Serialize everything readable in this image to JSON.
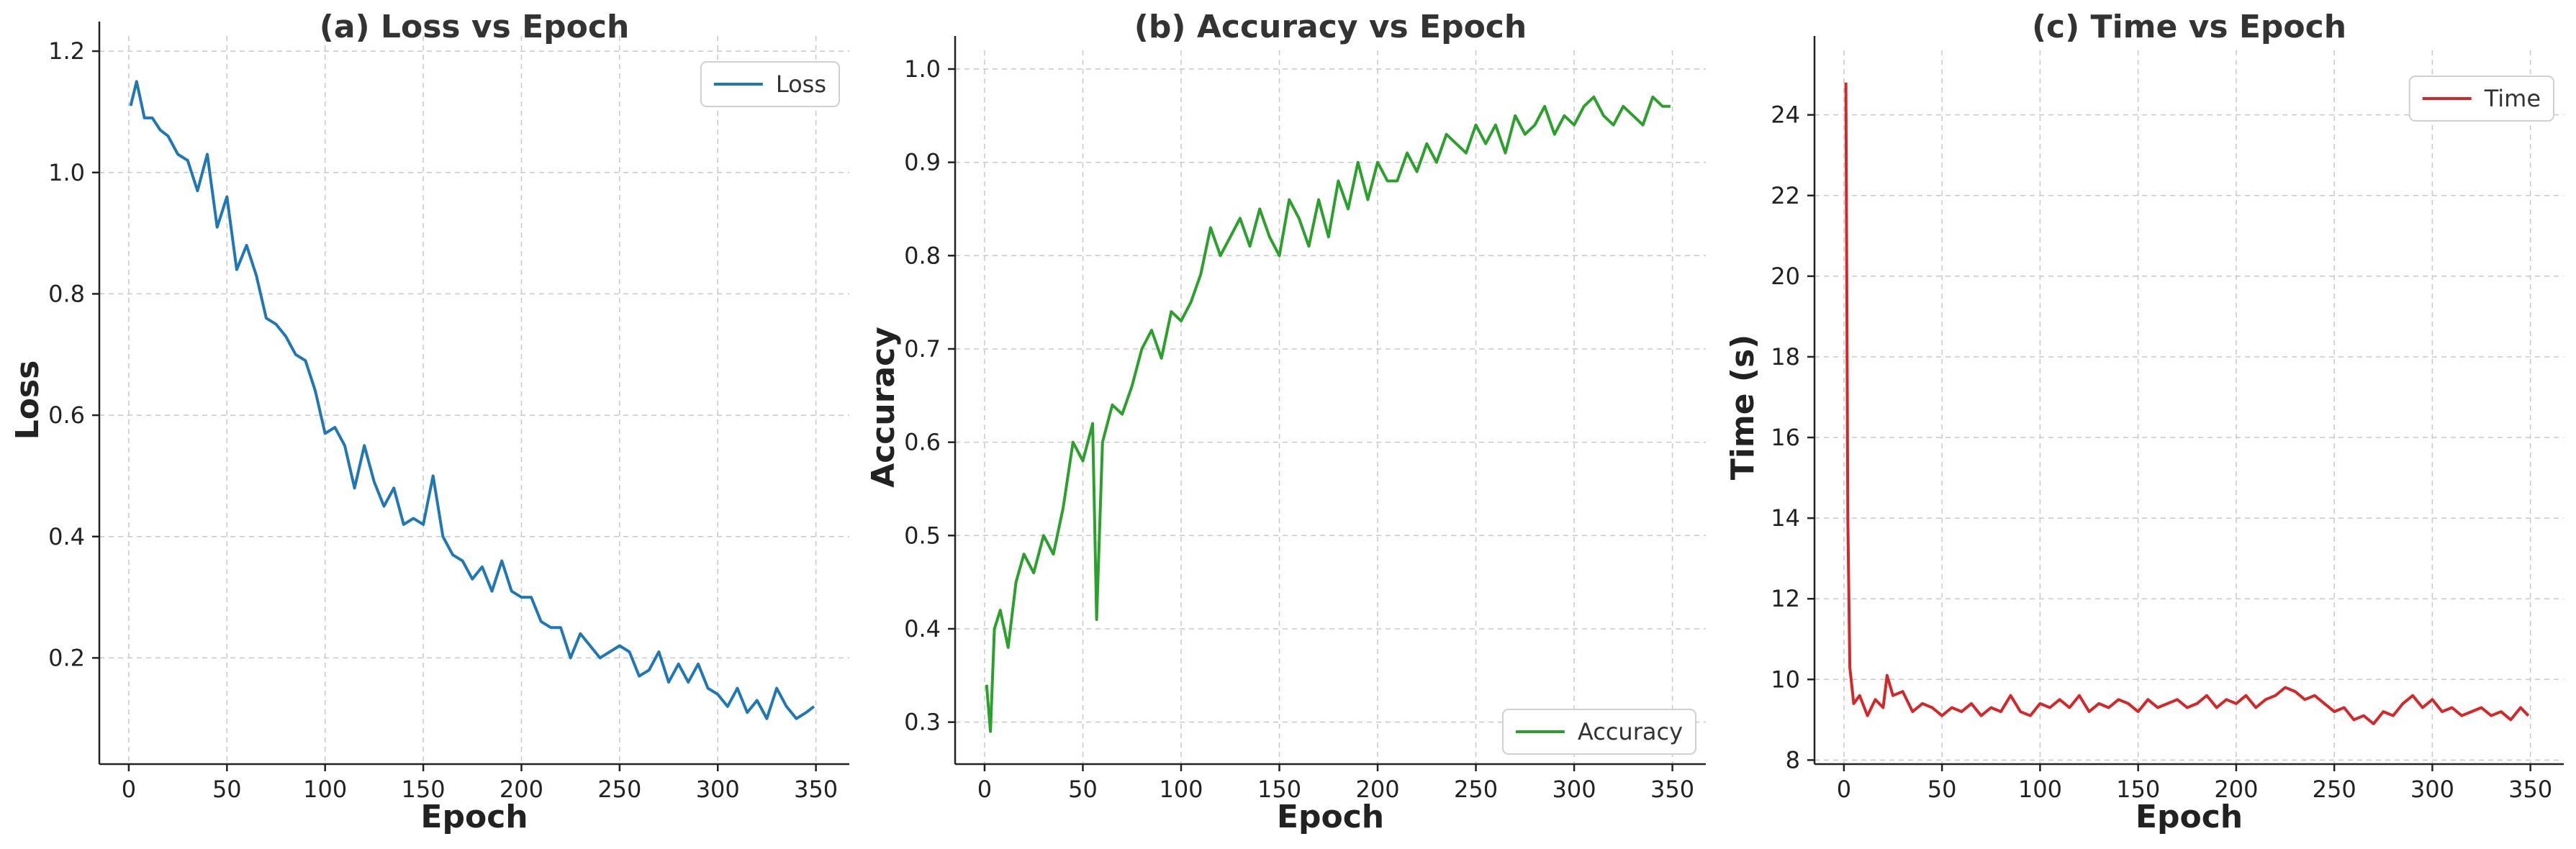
{
  "chart_data": [
    {
      "type": "line",
      "title": "(a) Loss vs Epoch",
      "xlabel": "Epoch",
      "ylabel": "Loss",
      "xlim": [
        -15,
        367
      ],
      "ylim": [
        0.025,
        1.225
      ],
      "xticks": [
        0,
        50,
        100,
        150,
        200,
        250,
        300,
        350
      ],
      "yticks": [
        0.2,
        0.4,
        0.6,
        0.8,
        1.0,
        1.2
      ],
      "ytick_labels": [
        "0.2",
        "0.4",
        "0.6",
        "0.8",
        "1.0",
        "1.2"
      ],
      "grid": true,
      "legend": "top-right",
      "series": [
        {
          "name": "Loss",
          "color": "#1f77b4",
          "x": [
            1,
            4,
            8,
            12,
            16,
            20,
            25,
            30,
            35,
            40,
            45,
            50,
            55,
            60,
            65,
            70,
            75,
            80,
            85,
            90,
            95,
            100,
            105,
            110,
            115,
            120,
            125,
            130,
            135,
            140,
            145,
            150,
            155,
            160,
            165,
            170,
            175,
            180,
            185,
            190,
            195,
            200,
            205,
            210,
            215,
            220,
            225,
            230,
            235,
            240,
            245,
            250,
            255,
            260,
            265,
            270,
            275,
            280,
            285,
            290,
            295,
            300,
            305,
            310,
            315,
            320,
            325,
            330,
            335,
            340,
            345,
            349
          ],
          "y": [
            1.11,
            1.15,
            1.09,
            1.09,
            1.07,
            1.06,
            1.03,
            1.02,
            0.97,
            1.03,
            0.91,
            0.96,
            0.84,
            0.88,
            0.83,
            0.76,
            0.75,
            0.73,
            0.7,
            0.69,
            0.64,
            0.57,
            0.58,
            0.55,
            0.48,
            0.55,
            0.49,
            0.45,
            0.48,
            0.42,
            0.43,
            0.42,
            0.5,
            0.4,
            0.37,
            0.36,
            0.33,
            0.35,
            0.31,
            0.36,
            0.31,
            0.3,
            0.3,
            0.26,
            0.25,
            0.25,
            0.2,
            0.24,
            0.22,
            0.2,
            0.21,
            0.22,
            0.21,
            0.17,
            0.18,
            0.21,
            0.16,
            0.19,
            0.16,
            0.19,
            0.15,
            0.14,
            0.12,
            0.15,
            0.11,
            0.13,
            0.1,
            0.15,
            0.12,
            0.1,
            0.11,
            0.12
          ]
        }
      ]
    },
    {
      "type": "line",
      "title": "(b) Accuracy vs Epoch",
      "xlabel": "Epoch",
      "ylabel": "Accuracy",
      "xlim": [
        -15,
        367
      ],
      "ylim": [
        0.255,
        1.02
      ],
      "xticks": [
        0,
        50,
        100,
        150,
        200,
        250,
        300,
        350
      ],
      "yticks": [
        0.3,
        0.4,
        0.5,
        0.6,
        0.7,
        0.8,
        0.9,
        1.0
      ],
      "ytick_labels": [
        "0.3",
        "0.4",
        "0.5",
        "0.6",
        "0.7",
        "0.8",
        "0.9",
        "1.0"
      ],
      "grid": true,
      "legend": "bottom-right",
      "series": [
        {
          "name": "Accuracy",
          "color": "#2ca02c",
          "x": [
            1,
            3,
            5,
            8,
            12,
            16,
            20,
            25,
            30,
            35,
            40,
            45,
            50,
            55,
            57,
            60,
            65,
            70,
            75,
            80,
            85,
            90,
            95,
            100,
            105,
            110,
            115,
            120,
            125,
            130,
            135,
            140,
            145,
            150,
            155,
            160,
            165,
            170,
            175,
            180,
            185,
            190,
            195,
            200,
            205,
            210,
            215,
            220,
            225,
            230,
            235,
            240,
            245,
            250,
            255,
            260,
            265,
            270,
            275,
            280,
            285,
            290,
            295,
            300,
            305,
            310,
            315,
            320,
            325,
            330,
            335,
            340,
            345,
            349
          ],
          "y": [
            0.34,
            0.29,
            0.4,
            0.42,
            0.38,
            0.45,
            0.48,
            0.46,
            0.5,
            0.48,
            0.53,
            0.6,
            0.58,
            0.62,
            0.41,
            0.6,
            0.64,
            0.63,
            0.66,
            0.7,
            0.72,
            0.69,
            0.74,
            0.73,
            0.75,
            0.78,
            0.83,
            0.8,
            0.82,
            0.84,
            0.81,
            0.85,
            0.82,
            0.8,
            0.86,
            0.84,
            0.81,
            0.86,
            0.82,
            0.88,
            0.85,
            0.9,
            0.86,
            0.9,
            0.88,
            0.88,
            0.91,
            0.89,
            0.92,
            0.9,
            0.93,
            0.92,
            0.91,
            0.94,
            0.92,
            0.94,
            0.91,
            0.95,
            0.93,
            0.94,
            0.96,
            0.93,
            0.95,
            0.94,
            0.96,
            0.97,
            0.95,
            0.94,
            0.96,
            0.95,
            0.94,
            0.97,
            0.96,
            0.96
          ]
        }
      ]
    },
    {
      "type": "line",
      "title": "(c) Time vs Epoch",
      "xlabel": "Epoch",
      "ylabel": "Time (s)",
      "xlim": [
        -15,
        367
      ],
      "ylim": [
        7.9,
        25.6
      ],
      "xticks": [
        0,
        50,
        100,
        150,
        200,
        250,
        300,
        350
      ],
      "yticks": [
        8,
        10,
        12,
        14,
        16,
        18,
        20,
        22,
        24
      ],
      "ytick_labels": [
        "8",
        "10",
        "12",
        "14",
        "16",
        "18",
        "20",
        "22",
        "24"
      ],
      "grid": true,
      "legend": "top-right",
      "series": [
        {
          "name": "Time",
          "color": "#d62728",
          "x": [
            1,
            2,
            3,
            5,
            8,
            12,
            16,
            20,
            22,
            25,
            30,
            35,
            40,
            45,
            50,
            55,
            60,
            65,
            70,
            75,
            80,
            85,
            90,
            95,
            100,
            105,
            110,
            115,
            120,
            125,
            130,
            135,
            140,
            145,
            150,
            155,
            160,
            165,
            170,
            175,
            180,
            185,
            190,
            195,
            200,
            205,
            210,
            215,
            220,
            225,
            230,
            235,
            240,
            245,
            250,
            255,
            260,
            265,
            270,
            275,
            280,
            285,
            290,
            295,
            300,
            305,
            310,
            315,
            320,
            325,
            330,
            335,
            340,
            345,
            349
          ],
          "y": [
            24.8,
            14.0,
            10.3,
            9.4,
            9.6,
            9.1,
            9.5,
            9.3,
            10.1,
            9.6,
            9.7,
            9.2,
            9.4,
            9.3,
            9.1,
            9.3,
            9.2,
            9.4,
            9.1,
            9.3,
            9.2,
            9.6,
            9.2,
            9.1,
            9.4,
            9.3,
            9.5,
            9.3,
            9.6,
            9.2,
            9.4,
            9.3,
            9.5,
            9.4,
            9.2,
            9.5,
            9.3,
            9.4,
            9.5,
            9.3,
            9.4,
            9.6,
            9.3,
            9.5,
            9.4,
            9.6,
            9.3,
            9.5,
            9.6,
            9.8,
            9.7,
            9.5,
            9.6,
            9.4,
            9.2,
            9.3,
            9.0,
            9.1,
            8.9,
            9.2,
            9.1,
            9.4,
            9.6,
            9.3,
            9.5,
            9.2,
            9.3,
            9.1,
            9.2,
            9.3,
            9.1,
            9.2,
            9.0,
            9.3,
            9.1
          ]
        }
      ]
    }
  ]
}
